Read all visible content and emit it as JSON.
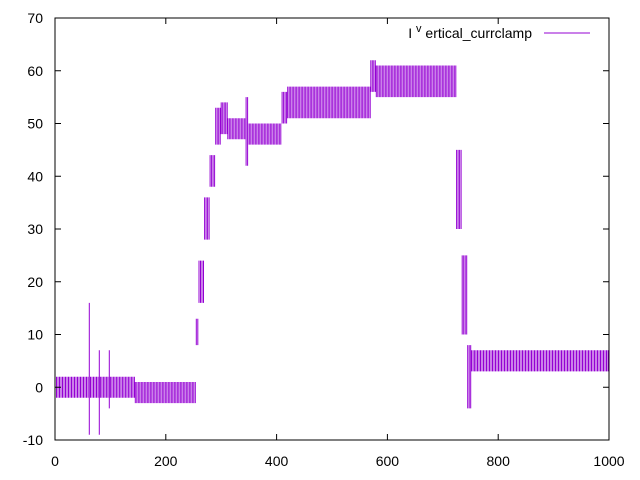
{
  "chart_data": {
    "type": "line",
    "xlim": [
      0,
      1000
    ],
    "ylim": [
      -10,
      70
    ],
    "x_ticks": [
      0,
      200,
      400,
      600,
      800,
      1000
    ],
    "y_ticks": [
      -10,
      0,
      10,
      20,
      30,
      40,
      50,
      60,
      70
    ],
    "grid": false,
    "legend_position": "top-right",
    "series": [
      {
        "name_main": "I",
        "name_sup": "v",
        "name_rest": "ertical_currclamp",
        "color": "#9400d3",
        "segments": [
          {
            "x_start": 0,
            "x_end": 62,
            "low": -2,
            "high": 2
          },
          {
            "x_start": 62,
            "x_end": 64,
            "low": -9,
            "high": 16
          },
          {
            "x_start": 64,
            "x_end": 80,
            "low": -2,
            "high": 2
          },
          {
            "x_start": 80,
            "x_end": 82,
            "low": -9,
            "high": 7
          },
          {
            "x_start": 82,
            "x_end": 98,
            "low": -2,
            "high": 2
          },
          {
            "x_start": 98,
            "x_end": 100,
            "low": -4,
            "high": 7
          },
          {
            "x_start": 100,
            "x_end": 145,
            "low": -2,
            "high": 2
          },
          {
            "x_start": 145,
            "x_end": 255,
            "low": -3,
            "high": 1
          },
          {
            "x_start": 255,
            "x_end": 260,
            "low": 8,
            "high": 13
          },
          {
            "x_start": 260,
            "x_end": 270,
            "low": 16,
            "high": 24
          },
          {
            "x_start": 270,
            "x_end": 280,
            "low": 28,
            "high": 36
          },
          {
            "x_start": 280,
            "x_end": 290,
            "low": 38,
            "high": 44
          },
          {
            "x_start": 290,
            "x_end": 300,
            "low": 46,
            "high": 53
          },
          {
            "x_start": 300,
            "x_end": 312,
            "low": 48,
            "high": 54
          },
          {
            "x_start": 312,
            "x_end": 345,
            "low": 47,
            "high": 51
          },
          {
            "x_start": 345,
            "x_end": 348,
            "low": 42,
            "high": 55
          },
          {
            "x_start": 348,
            "x_end": 410,
            "low": 46,
            "high": 50
          },
          {
            "x_start": 410,
            "x_end": 420,
            "low": 50,
            "high": 56
          },
          {
            "x_start": 420,
            "x_end": 570,
            "low": 51,
            "high": 57
          },
          {
            "x_start": 570,
            "x_end": 580,
            "low": 56,
            "high": 62
          },
          {
            "x_start": 580,
            "x_end": 725,
            "low": 55,
            "high": 61
          },
          {
            "x_start": 725,
            "x_end": 735,
            "low": 30,
            "high": 45
          },
          {
            "x_start": 735,
            "x_end": 745,
            "low": 10,
            "high": 25
          },
          {
            "x_start": 745,
            "x_end": 752,
            "low": -4,
            "high": 8
          },
          {
            "x_start": 752,
            "x_end": 760,
            "low": 3,
            "high": 7
          },
          {
            "x_start": 760,
            "x_end": 1000,
            "low": 3,
            "high": 7
          }
        ]
      }
    ]
  }
}
